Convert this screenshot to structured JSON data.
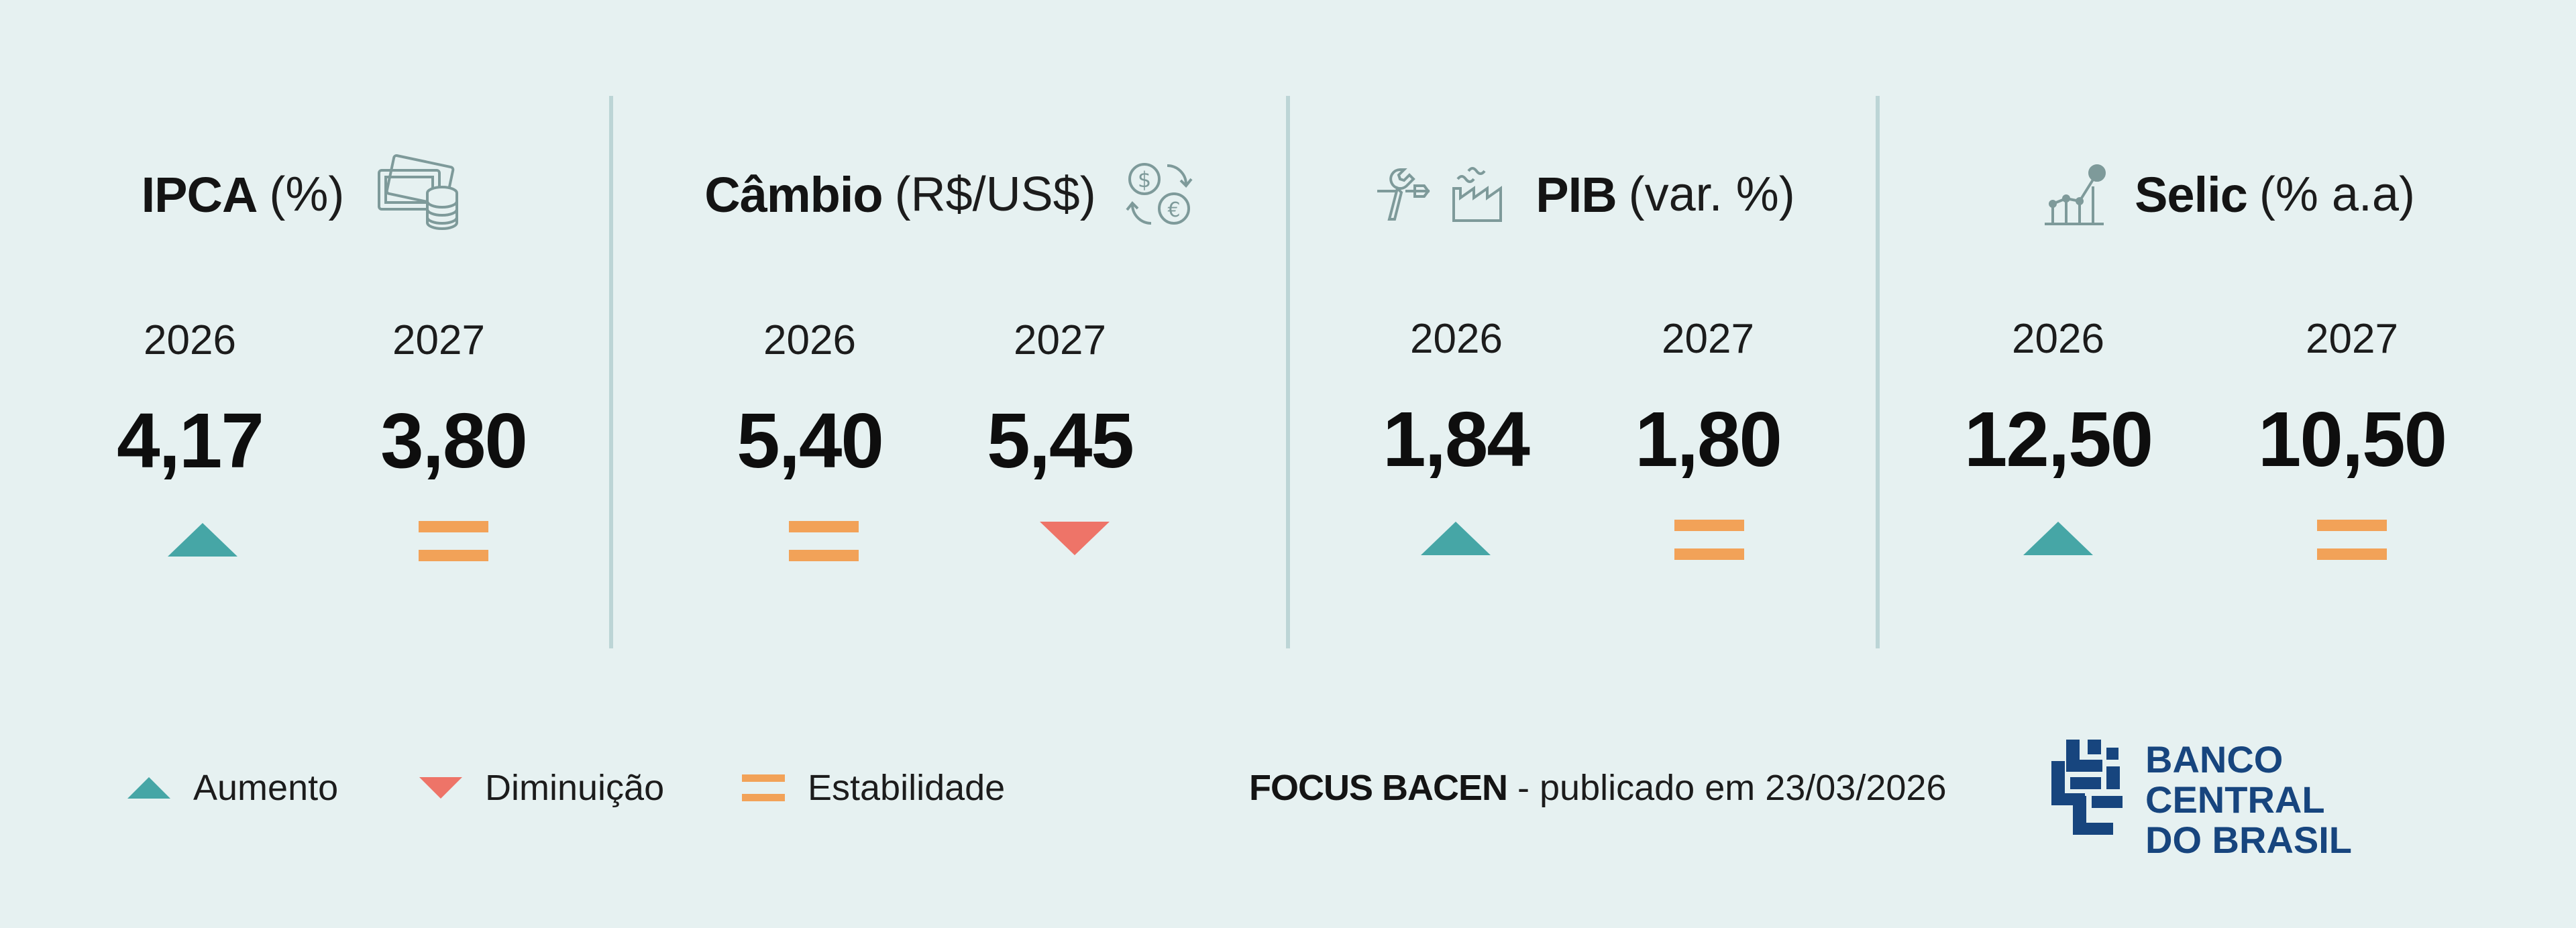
{
  "indicators": [
    {
      "name": "IPCA",
      "unit": "(%)",
      "icon": "money-coins-icon",
      "years": [
        {
          "year": "2026",
          "value": "4,17",
          "trend": "aumento"
        },
        {
          "year": "2027",
          "value": "3,80",
          "trend": "estabilidade"
        }
      ]
    },
    {
      "name": "Câmbio",
      "unit": "(R$/US$)",
      "icon": "currency-exchange-icon",
      "years": [
        {
          "year": "2026",
          "value": "5,40",
          "trend": "estabilidade"
        },
        {
          "year": "2027",
          "value": "5,45",
          "trend": "diminuicao"
        }
      ]
    },
    {
      "name": "PIB",
      "unit": "(var. %)",
      "icon": "tools-factory-icon",
      "years": [
        {
          "year": "2026",
          "value": "1,84",
          "trend": "aumento"
        },
        {
          "year": "2027",
          "value": "1,80",
          "trend": "estabilidade"
        }
      ]
    },
    {
      "name": "Selic",
      "unit": "(% a.a)",
      "icon": "growth-chart-icon",
      "years": [
        {
          "year": "2026",
          "value": "12,50",
          "trend": "aumento"
        },
        {
          "year": "2027",
          "value": "10,50",
          "trend": "estabilidade"
        }
      ]
    }
  ],
  "legend": {
    "aumento": "Aumento",
    "diminuicao": "Diminuição",
    "estabilidade": "Estabilidade"
  },
  "source": {
    "bold": "FOCUS BACEN",
    "rest": " - publicado em 23/03/2026"
  },
  "logo": {
    "line1": "BANCO CENTRAL",
    "line2": "DO BRASIL"
  },
  "colors": {
    "background": "#e6f1f1",
    "aumento": "#46a6a6",
    "diminuicao": "#ee7468",
    "estabilidade": "#f2a258",
    "brand": "#17457e",
    "divider": "#bcd5d6"
  }
}
